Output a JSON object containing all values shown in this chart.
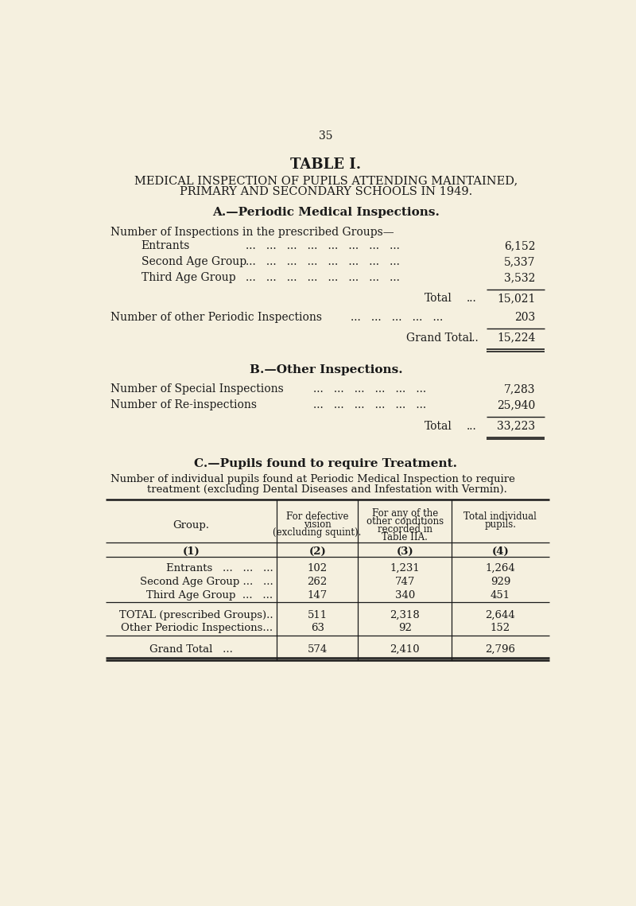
{
  "bg_color": "#f5f0df",
  "text_color": "#1a1a1a",
  "page_number": "35",
  "table_title": "TABLE I.",
  "subtitle_line1": "MEDICAL INSPECTION OF PUPILS ATTENDING MAINTAINED,",
  "subtitle_line2": "PRIMARY AND SECONDARY SCHOOLS IN 1949.",
  "section_A_title": "A.—Periodic Medical Inspections.",
  "section_A_intro": "Number of Inspections in the prescribed Groups—",
  "section_A_rows": [
    {
      "label": "Entrants",
      "value": "6,152"
    },
    {
      "label": "Second Age Group",
      "value": "5,337"
    },
    {
      "label": "Third Age Group",
      "value": "3,532"
    }
  ],
  "section_A_total_label": "Total",
  "section_A_total_value": "15,021",
  "section_A_other_label": "Number of other Periodic Inspections",
  "section_A_other_value": "203",
  "section_A_grand_label": "Grand Total",
  "section_A_grand_value": "15,224",
  "section_B_title": "B.—Other Inspections.",
  "section_B_rows": [
    {
      "label": "Number of Special Inspections",
      "value": "7,283"
    },
    {
      "label": "Number of Re-inspections",
      "value": "25,940"
    }
  ],
  "section_B_total_label": "Total",
  "section_B_total_value": "33,223",
  "section_C_title": "C.—Pupils found to require Treatment.",
  "section_C_intro1": "Number of individual pupils found at Periodic Medical Inspection to require",
  "section_C_intro2": "treatment (excluding Dental Diseases and Infestation with Vermin).",
  "col_header1": "Group.",
  "col_header2": "For defective\nvision\n(excluding squint).",
  "col_header3": "For any of the\nother conditions\nrecorded in\nTable IIA.",
  "col_header4": "Total individual\npupils.",
  "col_num1": "(1)",
  "col_num2": "(2)",
  "col_num3": "(3)",
  "col_num4": "(4)",
  "table_data_rows": [
    [
      "Entrants   ...   ...   ...",
      "102",
      "1,231",
      "1,264"
    ],
    [
      "Second Age Group ...   ...",
      "262",
      "747",
      "929"
    ],
    [
      "Third Age Group  ...   ...",
      "147",
      "340",
      "451"
    ]
  ],
  "table_total_rows": [
    [
      "TOTAL (prescribed Groups)..",
      "511",
      "2,318",
      "2,644"
    ],
    [
      "Other Periodic Inspections...",
      "63",
      "92",
      "152"
    ]
  ],
  "table_grand_row": [
    "Grand Total   ...",
    "574",
    "2,410",
    "2,796"
  ],
  "dots8": "...   ...   ...   ...   ...   ...   ...   ...",
  "dots7": "...   ...   ...   ...   ...   ...   ...",
  "dots5": "...   ...   ...   ...   ...",
  "dots6": "...   ...   ...   ...   ...   ..."
}
